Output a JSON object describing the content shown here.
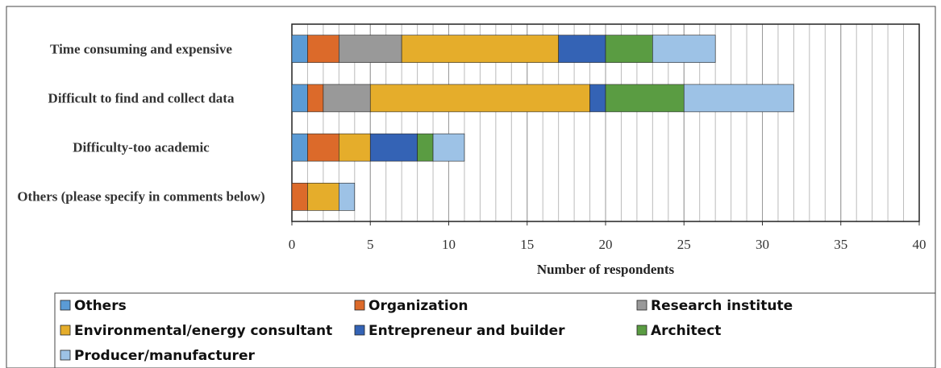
{
  "chart_data": {
    "type": "stacked_bar_horizontal",
    "x_label": "Number of respondents",
    "categories": [
      "Time consuming and expensive",
      "Difficult to find and collect data",
      "Difficulty-too academic",
      "Others (please specify in comments below)"
    ],
    "series": [
      {
        "name": "Others",
        "color": "#5b9bd5",
        "values": [
          1,
          1,
          1,
          0
        ]
      },
      {
        "name": "Organization",
        "color": "#dc6a2a",
        "values": [
          2,
          1,
          2,
          1
        ]
      },
      {
        "name": "Research institute",
        "color": "#999999",
        "values": [
          4,
          3,
          0,
          0
        ]
      },
      {
        "name": "Environmental/energy consultant",
        "color": "#e5ad2b",
        "values": [
          10,
          14,
          2,
          2
        ]
      },
      {
        "name": "Entrepreneur and builder",
        "color": "#3463b5",
        "values": [
          3,
          1,
          3,
          0
        ]
      },
      {
        "name": "Architect",
        "color": "#5a9c42",
        "values": [
          3,
          5,
          1,
          0
        ]
      },
      {
        "name": "Producer/manufacturer",
        "color": "#9dc2e6",
        "values": [
          4,
          7,
          2,
          1
        ]
      }
    ],
    "xlim": [
      0,
      40
    ],
    "xticks": [
      0,
      5,
      10,
      15,
      20,
      25,
      30,
      35,
      40
    ],
    "grid": true,
    "minor_grid_step": 1,
    "legend": "bottom"
  }
}
